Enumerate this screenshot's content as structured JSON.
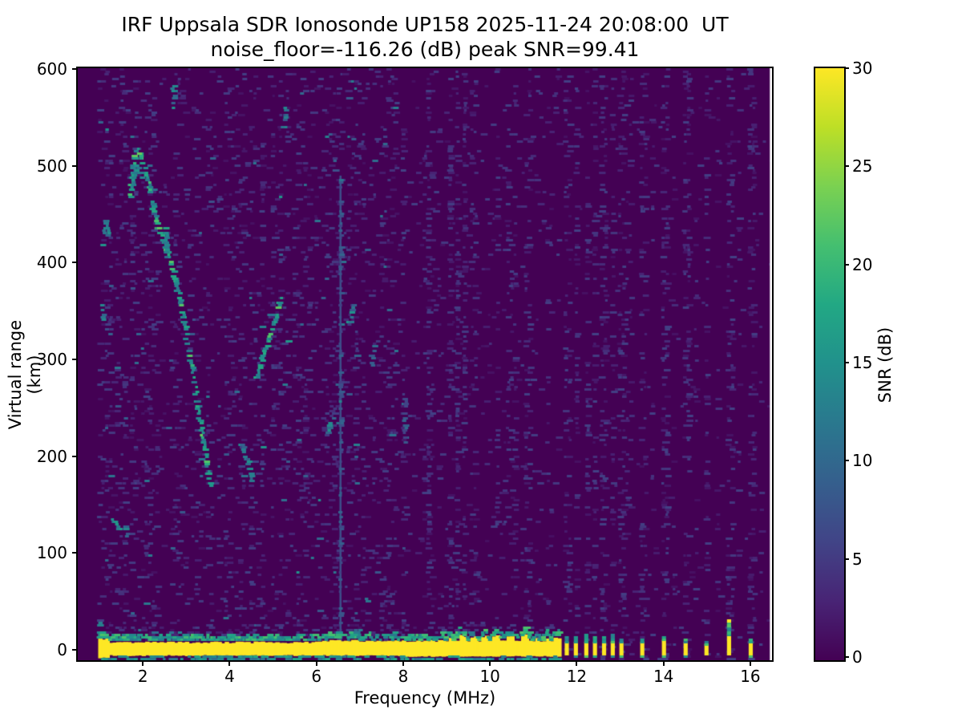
{
  "title": {
    "line1": "IRF Uppsala SDR Ionosonde UP158 2025-11-24 20:08:00  UT",
    "line2": "noise_floor=-116.26 (dB) peak SNR=99.41"
  },
  "chart_data": {
    "type": "heatmap",
    "title": "IRF Uppsala SDR Ionosonde UP158 2025-11-24 20:08:00 UT",
    "subtitle": "noise_floor=-116.26 (dB) peak SNR=99.41",
    "xlabel": "Frequency (MHz)",
    "ylabel": "Virtual range (km)",
    "station": "UP158",
    "timestamp_ut": "2025-11-24 20:08:00",
    "noise_floor_db": -116.26,
    "peak_snr_db": 99.41,
    "xlim": [
      0.5,
      16.5
    ],
    "ylim": [
      -11,
      601
    ],
    "xticks": [
      2,
      4,
      6,
      8,
      10,
      12,
      14,
      16
    ],
    "yticks": [
      0,
      100,
      200,
      300,
      400,
      500,
      600
    ],
    "grid": false,
    "colorbar": {
      "label": "SNR (dB)",
      "vmin": 0,
      "vmax": 30,
      "ticks": [
        0,
        5,
        10,
        15,
        20,
        25,
        30
      ],
      "colormap": "viridis",
      "stops": [
        "#440154",
        "#482475",
        "#414487",
        "#355f8d",
        "#2a788e",
        "#21918c",
        "#22a884",
        "#44bf70",
        "#7ad151",
        "#bddf26",
        "#fde725"
      ]
    },
    "background_snr_db": 0,
    "data_freq_range_mhz": [
      0.95,
      16.45
    ],
    "ground_band": {
      "f0": 0.98,
      "f1": 11.62,
      "yellow_top_km": 8,
      "yellow_bottom_km": -6,
      "fringe_top_km": 14,
      "under_fringe_bottom_km": -10,
      "snr_db": 30,
      "top_bump_freqs_mhz": [
        9.05,
        9.35,
        9.6,
        9.85,
        10.1,
        10.45,
        10.75,
        11.05,
        11.3,
        11.5
      ]
    },
    "interference_bars": [
      {
        "f": 11.77,
        "top_km": 8,
        "cap_km": 14
      },
      {
        "f": 11.98,
        "top_km": 8,
        "cap_km": 15
      },
      {
        "f": 12.22,
        "top_km": 8,
        "cap_km": 16
      },
      {
        "f": 12.42,
        "top_km": 8,
        "cap_km": 15
      },
      {
        "f": 12.63,
        "top_km": 8,
        "cap_km": 14
      },
      {
        "f": 12.83,
        "top_km": 8,
        "cap_km": 16
      },
      {
        "f": 13.03,
        "top_km": 8,
        "cap_km": 13
      },
      {
        "f": 13.51,
        "top_km": 8,
        "cap_km": 12
      },
      {
        "f": 14.01,
        "top_km": 10,
        "cap_km": 13
      },
      {
        "f": 14.51,
        "top_km": 8,
        "cap_km": 12
      },
      {
        "f": 14.99,
        "top_km": 6,
        "cap_km": 9
      },
      {
        "f": 15.51,
        "top_km": 16,
        "cap_km": 30
      },
      {
        "f": 16.01,
        "top_km": 8,
        "cap_km": 11
      }
    ],
    "rfi_vertical_line": {
      "f_mhz": 6.55,
      "km0": -2,
      "km1": 490,
      "snr_db": 7
    },
    "echo_trace_segments": [
      {
        "pts": [
          [
            1.72,
            466
          ],
          [
            1.8,
            505
          ],
          [
            1.88,
            518
          ],
          [
            1.97,
            510
          ],
          [
            2.06,
            495
          ],
          [
            2.15,
            478
          ],
          [
            2.24,
            458
          ],
          [
            2.34,
            440
          ],
          [
            2.46,
            427
          ],
          [
            2.58,
            410
          ],
          [
            2.68,
            396
          ],
          [
            2.78,
            378
          ],
          [
            2.88,
            358
          ],
          [
            2.96,
            340
          ],
          [
            3.04,
            315
          ],
          [
            3.12,
            297
          ],
          [
            3.2,
            276
          ],
          [
            3.28,
            250
          ],
          [
            3.34,
            232
          ],
          [
            3.42,
            212
          ],
          [
            3.49,
            192
          ],
          [
            3.56,
            168
          ]
        ],
        "v": 15,
        "bright": 0.18
      },
      {
        "pts": [
          [
            1.76,
            478
          ],
          [
            1.88,
            498
          ],
          [
            2.0,
            488
          ]
        ],
        "v": 14,
        "bright": 0.1
      },
      {
        "pts": [
          [
            2.55,
            438
          ],
          [
            2.55,
            408
          ]
        ],
        "v": 14,
        "bright": 0.1
      },
      {
        "pts": [
          [
            4.62,
            282
          ],
          [
            4.75,
            298
          ],
          [
            4.9,
            318
          ],
          [
            5.05,
            340
          ],
          [
            5.2,
            365
          ]
        ],
        "v": 15,
        "bright": 0.3
      },
      {
        "pts": [
          [
            4.28,
            212
          ],
          [
            4.42,
            194
          ],
          [
            4.54,
            176
          ]
        ],
        "v": 12,
        "bright": 0.05
      },
      {
        "pts": [
          [
            1.1,
            418
          ],
          [
            1.16,
            445
          ],
          [
            1.22,
            428
          ]
        ],
        "v": 13,
        "bright": 0.1
      },
      {
        "pts": [
          [
            1.07,
            355
          ],
          [
            1.13,
            338
          ]
        ],
        "v": 12,
        "bright": 0
      },
      {
        "pts": [
          [
            1.3,
            136
          ],
          [
            1.42,
            127
          ],
          [
            1.52,
            123
          ]
        ],
        "v": 13,
        "bright": 0.1
      },
      {
        "pts": [
          [
            1.62,
            128
          ],
          [
            1.66,
            120
          ]
        ],
        "v": 11,
        "bright": 0
      },
      {
        "pts": [
          [
            2.72,
            558
          ],
          [
            2.77,
            582
          ]
        ],
        "v": 12,
        "bright": 0
      },
      {
        "pts": [
          [
            5.27,
            538
          ],
          [
            5.31,
            562
          ]
        ],
        "v": 11,
        "bright": 0
      },
      {
        "pts": [
          [
            6.29,
            222
          ],
          [
            6.33,
            242
          ]
        ],
        "v": 13,
        "bright": 0
      },
      {
        "pts": [
          [
            6.78,
            338
          ],
          [
            6.88,
            358
          ]
        ],
        "v": 12,
        "bright": 0
      },
      {
        "pts": [
          [
            7.28,
            294
          ],
          [
            7.33,
            312
          ]
        ],
        "v": 10,
        "bright": 0
      },
      {
        "pts": [
          [
            8.05,
            215
          ],
          [
            8.05,
            262
          ]
        ],
        "v": 8,
        "bright": 0
      }
    ],
    "noise": {
      "left_density": 0.1,
      "mid_density": 0.05,
      "right_base_density": 0.008,
      "right_column_density": 0.07,
      "bar_column_density": 0.2,
      "right_extra_col_freqs": [
        13.2,
        13.75,
        14.25,
        14.75,
        15.25,
        15.75,
        16.25
      ],
      "near_band_density_boost": 0.14
    }
  }
}
